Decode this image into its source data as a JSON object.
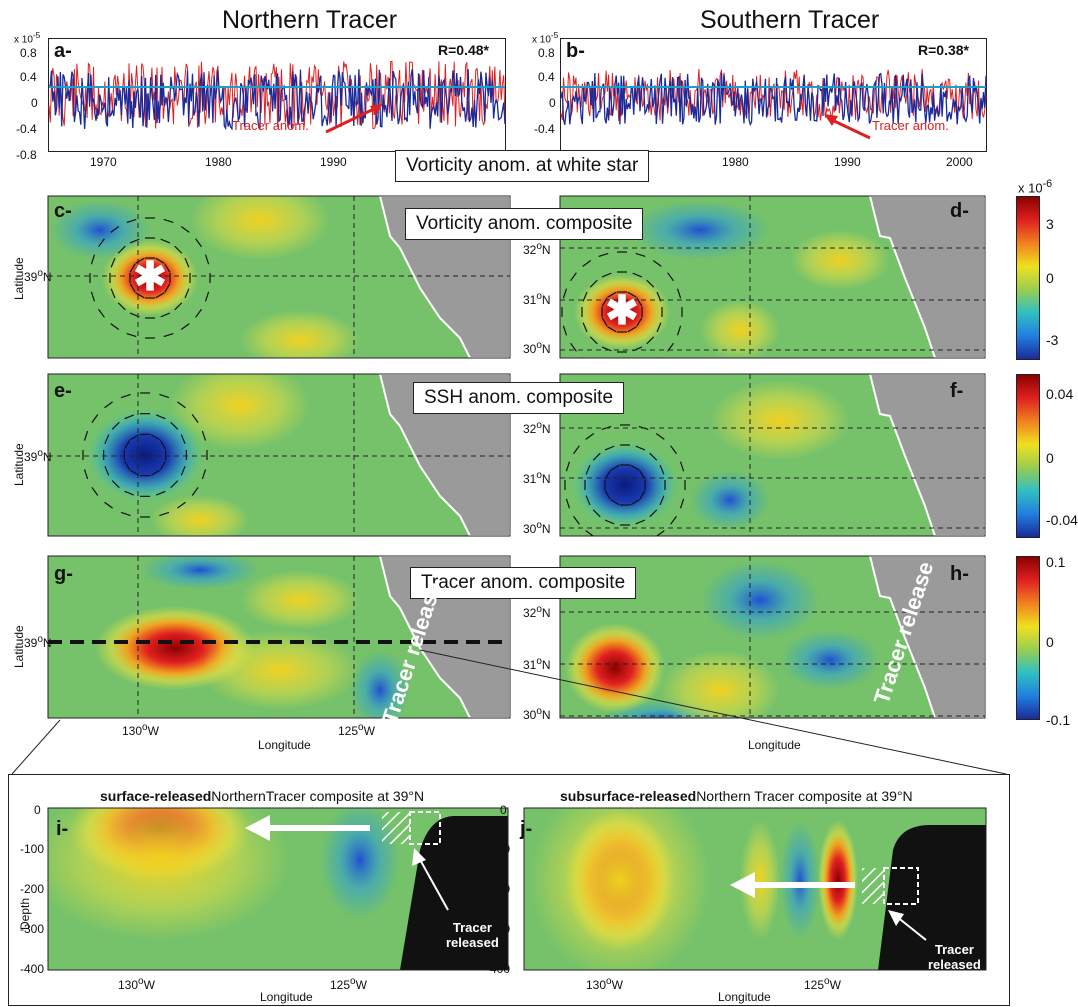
{
  "columns": {
    "left_title": "Northern Tracer",
    "right_title": "Southern Tracer"
  },
  "panels": {
    "a": {
      "label": "a-",
      "r": "R=0.48*",
      "annotation": "Tracer anom."
    },
    "b": {
      "label": "b-",
      "r": "R=0.38*",
      "annotation": "Tracer anom."
    },
    "c": {
      "label": "c-"
    },
    "d": {
      "label": "d-"
    },
    "e": {
      "label": "e-"
    },
    "f": {
      "label": "f-"
    },
    "g": {
      "label": "g-",
      "release": "Tracer release"
    },
    "h": {
      "label": "h-",
      "release": "Tracer release"
    },
    "i": {
      "label": "i-",
      "title_bold": "surface-released",
      "title_rest": "NorthernTracer composite at 39°N",
      "released": [
        "Tracer",
        "released"
      ]
    },
    "j": {
      "label": "j-",
      "title_bold": "subsurface-released",
      "title_rest": "Northern Tracer composite at 39°N",
      "released": [
        "Tracer",
        "released"
      ]
    }
  },
  "row_titles": {
    "vorticity_star": "Vorticity anom. at white star",
    "vorticity": "Vorticity anom. composite",
    "ssh": "SSH anom. composite",
    "tracer": "Tracer anom. composite"
  },
  "axes": {
    "ts_exponent": "x 10",
    "ts_exponent_sup": "-5",
    "ts_yticks": [
      "0.8",
      "0.4",
      "0",
      "-0.4",
      "-0.8"
    ],
    "ts_yticks_b": [
      "0.8",
      "0.4",
      "0",
      "-0.4"
    ],
    "ts_xticks_a": [
      "1970",
      "1980",
      "1990"
    ],
    "ts_xticks_b": [
      "1980",
      "1990",
      "2000"
    ],
    "lat_label": "Latitude",
    "lon_label": "Longitude",
    "depth_label": "Depth",
    "lat_39": "39",
    "lat_right": [
      "32",
      "31",
      "30"
    ],
    "lon_ticks": [
      "130",
      "125"
    ],
    "depth_ticks": [
      "0",
      "-100",
      "-200",
      "-300",
      "-400"
    ],
    "deg_o": "o",
    "N": "N",
    "W": "W"
  },
  "colorbars": {
    "vort": {
      "exp": "x 10",
      "exp_sup": "-6",
      "ticks": [
        "3",
        "0",
        "-3"
      ]
    },
    "ssh": {
      "ticks": [
        "0.04",
        "0",
        "-0.04"
      ]
    },
    "tracer": {
      "ticks": [
        "0.1",
        "0",
        "-0.1"
      ]
    }
  },
  "colors": {
    "red_series": "#e02020",
    "blue_series": "#1a2a9a",
    "cyan_line": "#1aa0d0",
    "land": "#9a9a9a",
    "depth_land": "#111111"
  }
}
